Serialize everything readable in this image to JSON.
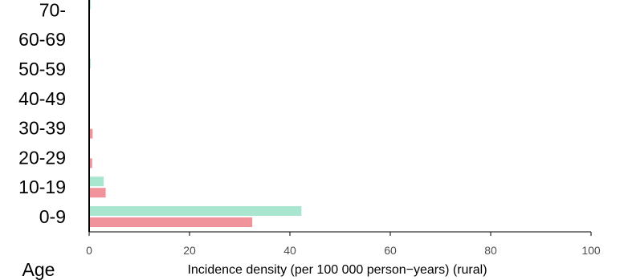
{
  "chart_data": {
    "type": "bar",
    "orientation": "horizontal",
    "categories": [
      "0-9",
      "10-19",
      "20-29",
      "30-39",
      "40-49",
      "50-59",
      "60-69",
      "70-"
    ],
    "series": [
      {
        "color": "#a8e6d0",
        "values": [
          42.3,
          2.9,
          0,
          0,
          0,
          0.3,
          0,
          0.3
        ]
      },
      {
        "color": "#f0939a",
        "values": [
          32.5,
          3.3,
          0.6,
          0.7,
          0,
          0,
          0,
          0
        ]
      }
    ],
    "xlabel": "Incidence density (per 100 000 person−years) (rural)",
    "ylabel": "Age",
    "xlim": [
      0,
      100
    ],
    "x_ticks": [
      "0",
      "20",
      "40",
      "60",
      "80",
      "100"
    ],
    "grid": false,
    "legend": "none"
  }
}
